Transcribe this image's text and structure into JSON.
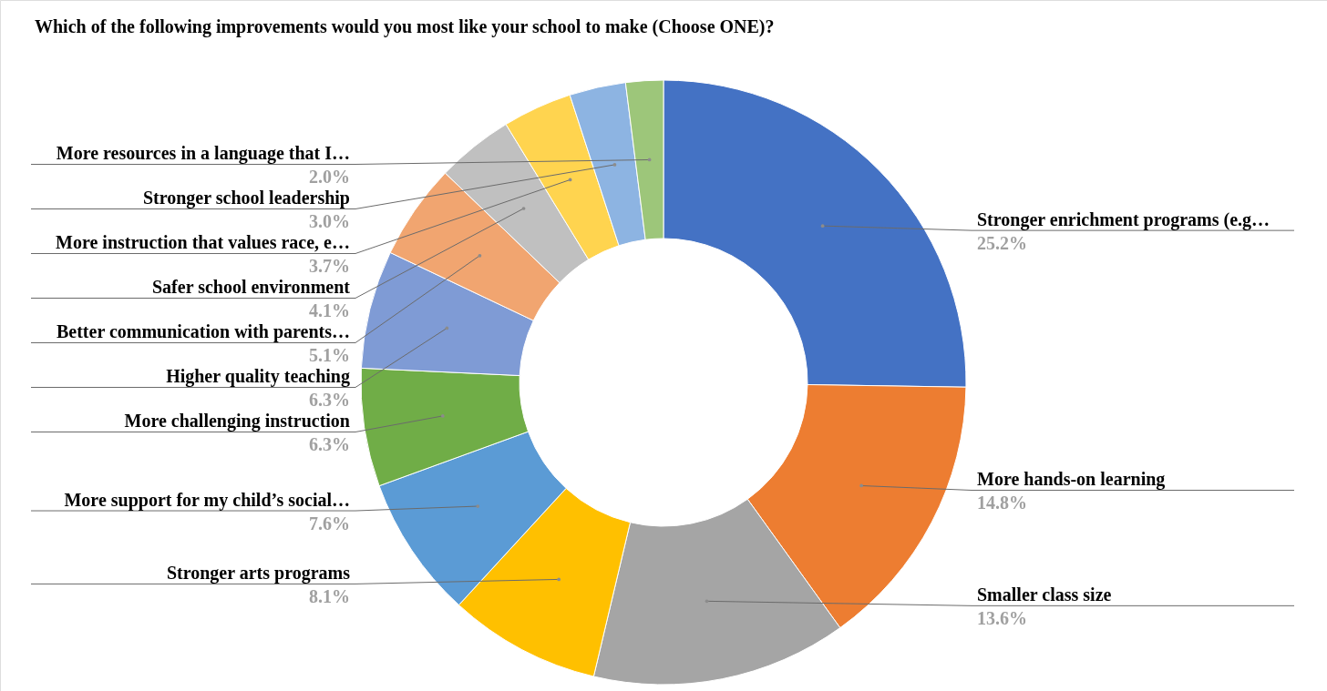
{
  "chart_data": {
    "type": "donut",
    "title": "Which of the following improvements would you most like your school to make (Choose ONE)?",
    "categories": [
      "Stronger enrichment programs (e.g…",
      "More hands-on learning",
      "Smaller class size",
      "Stronger arts programs",
      "More support for my child’s social…",
      "More challenging instruction",
      "Higher quality teaching",
      "Better communication with parents…",
      "Safer school environment",
      "More instruction that values race, e…",
      "Stronger school leadership",
      "More resources in a language that I…"
    ],
    "values": [
      25.2,
      14.8,
      13.6,
      8.1,
      7.6,
      6.3,
      6.3,
      5.1,
      4.1,
      3.7,
      3.0,
      2.0
    ],
    "value_labels": [
      "25.2%",
      "14.8%",
      "13.6%",
      "8.1%",
      "7.6%",
      "6.3%",
      "6.3%",
      "5.1%",
      "4.1%",
      "3.7%",
      "3.0%",
      "2.0%"
    ],
    "colors": [
      "#4472c4",
      "#ed7d31",
      "#a5a5a5",
      "#ffc000",
      "#5b9bd5",
      "#70ad47",
      "#7f9bd5",
      "#f1a570",
      "#c0c0c0",
      "#ffd44f",
      "#8db4e2",
      "#9dc67a"
    ]
  }
}
